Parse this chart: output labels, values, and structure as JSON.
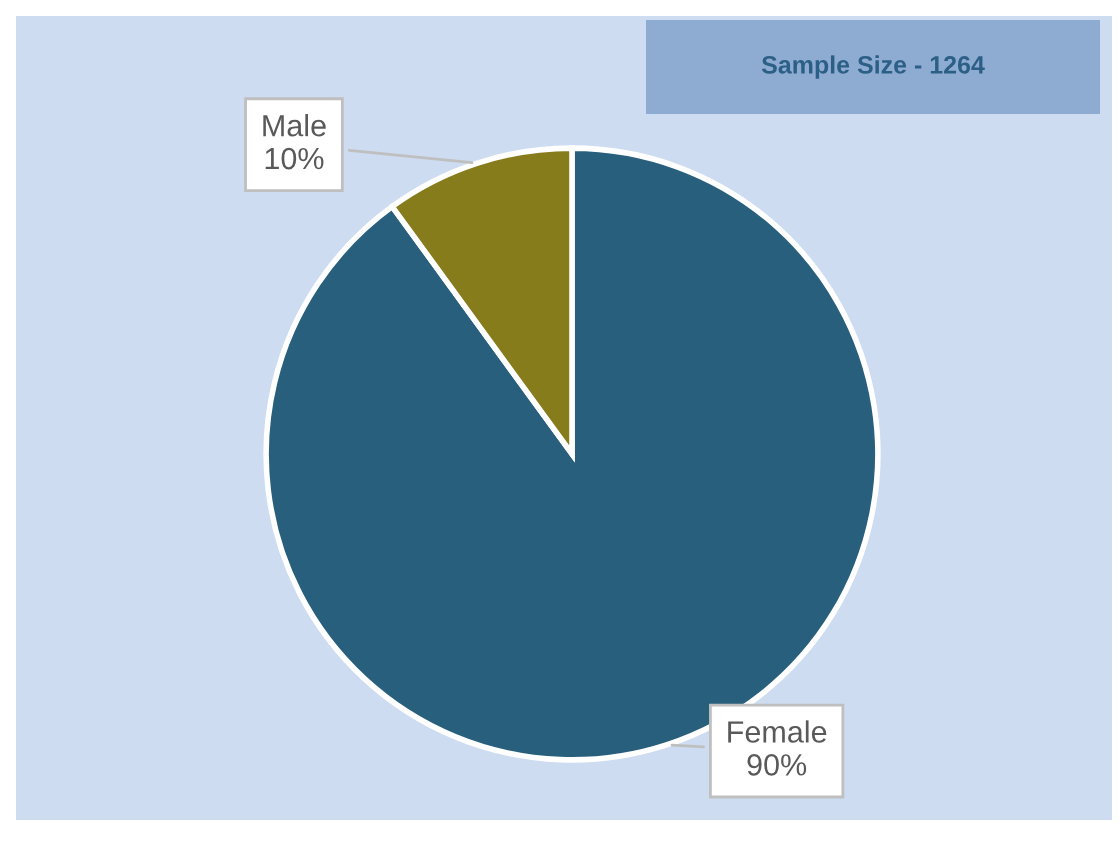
{
  "chart_data": {
    "type": "pie",
    "title": "Sample Size - 1264",
    "categories": [
      "Female",
      "Male"
    ],
    "values": [
      90,
      10
    ],
    "value_labels": [
      "90%",
      "10%"
    ],
    "colors": [
      "#285f7d",
      "#877c1c"
    ],
    "legend": false
  }
}
